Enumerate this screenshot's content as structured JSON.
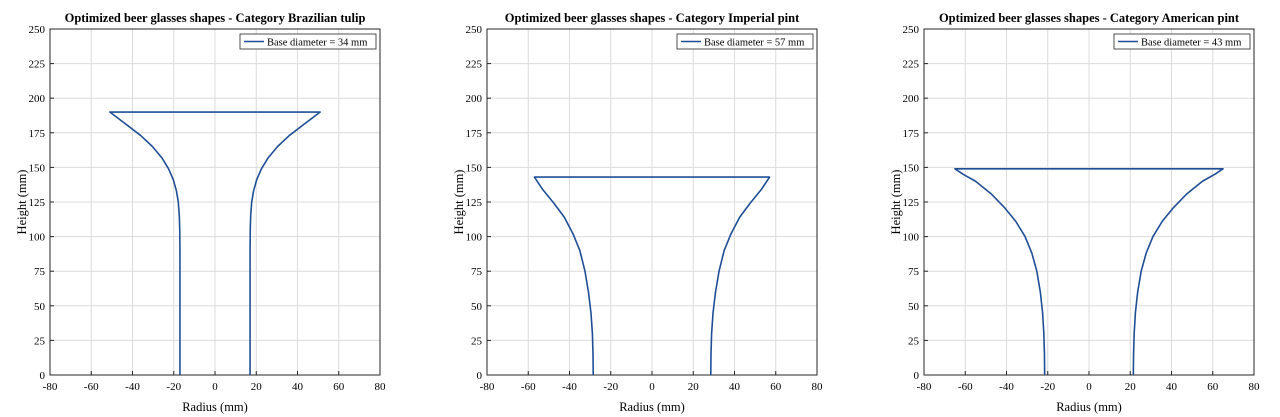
{
  "chart_data": [
    {
      "type": "line",
      "title": "Optimized beer glasses shapes - Category Brazilian tulip",
      "xlabel": "Radius (mm)",
      "ylabel": "Height (mm)",
      "xlim": [
        -80,
        80
      ],
      "ylim": [
        0,
        250
      ],
      "xticks": [
        -80,
        -60,
        -40,
        -20,
        0,
        20,
        40,
        60,
        80
      ],
      "yticks": [
        0,
        25,
        50,
        75,
        100,
        125,
        150,
        175,
        200,
        225,
        250
      ],
      "grid": true,
      "legend_position": "top-right",
      "color": "#1f4e96",
      "series": [
        {
          "name": "Base diameter =  34 mm",
          "x": [
            -17,
            -17,
            -17,
            -17.1,
            -17.3,
            -17.8,
            -18.7,
            -20.2,
            -22.5,
            -25.8,
            -30.3,
            -36,
            -43,
            -51,
            51,
            43,
            36,
            30.3,
            25.8,
            22.5,
            20.2,
            18.7,
            17.8,
            17.3,
            17.1,
            17,
            17,
            17
          ],
          "y": [
            0,
            60,
            90,
            105,
            115,
            125,
            133,
            141,
            149,
            157,
            165,
            173,
            181,
            190,
            190,
            181,
            173,
            165,
            157,
            149,
            141,
            133,
            125,
            115,
            105,
            90,
            60,
            0
          ]
        }
      ]
    },
    {
      "type": "line",
      "title": "Optimized beer glasses shapes - Category Imperial pint",
      "xlabel": "Radius (mm)",
      "ylabel": "Height (mm)",
      "xlim": [
        -80,
        80
      ],
      "ylim": [
        0,
        250
      ],
      "xticks": [
        -80,
        -60,
        -40,
        -20,
        0,
        20,
        40,
        60,
        80
      ],
      "yticks": [
        0,
        25,
        50,
        75,
        100,
        125,
        150,
        175,
        200,
        225,
        250
      ],
      "grid": true,
      "legend_position": "top-right",
      "color": "#1f4e96",
      "series": [
        {
          "name": "Base diameter =  57 mm",
          "x": [
            -28.5,
            -28.6,
            -28.9,
            -29.6,
            -30.8,
            -32.5,
            -35,
            -38.3,
            -42.5,
            -47.5,
            -53,
            -57,
            57,
            53,
            47.5,
            42.5,
            38.3,
            35,
            32.5,
            30.8,
            29.6,
            28.9,
            28.6,
            28.5
          ],
          "y": [
            0,
            15,
            30,
            45,
            60,
            75,
            90,
            102,
            114,
            124,
            134,
            143,
            143,
            134,
            124,
            114,
            102,
            90,
            75,
            60,
            45,
            30,
            15,
            0
          ]
        }
      ]
    },
    {
      "type": "line",
      "title": "Optimized beer glasses shapes - Category American pint",
      "xlabel": "Radius (mm)",
      "ylabel": "Height (mm)",
      "xlim": [
        -80,
        80
      ],
      "ylim": [
        0,
        250
      ],
      "xticks": [
        -80,
        -60,
        -40,
        -20,
        0,
        20,
        40,
        60,
        80
      ],
      "yticks": [
        0,
        25,
        50,
        75,
        100,
        125,
        150,
        175,
        200,
        225,
        250
      ],
      "grid": true,
      "legend_position": "top-right",
      "color": "#1f4e96",
      "series": [
        {
          "name": "Base diameter =  43 mm",
          "x": [
            -21.5,
            -21.6,
            -21.9,
            -22.5,
            -23.6,
            -25.3,
            -27.7,
            -31,
            -35.5,
            -41,
            -47.5,
            -55,
            -61,
            -65,
            65,
            61,
            55,
            47.5,
            41,
            35.5,
            31,
            27.7,
            25.3,
            23.6,
            22.5,
            21.9,
            21.6,
            21.5
          ],
          "y": [
            0,
            15,
            30,
            45,
            60,
            75,
            88,
            100,
            111,
            121,
            131,
            140,
            145,
            149,
            149,
            145,
            140,
            131,
            121,
            111,
            100,
            88,
            75,
            60,
            45,
            30,
            15,
            0
          ]
        }
      ]
    }
  ]
}
